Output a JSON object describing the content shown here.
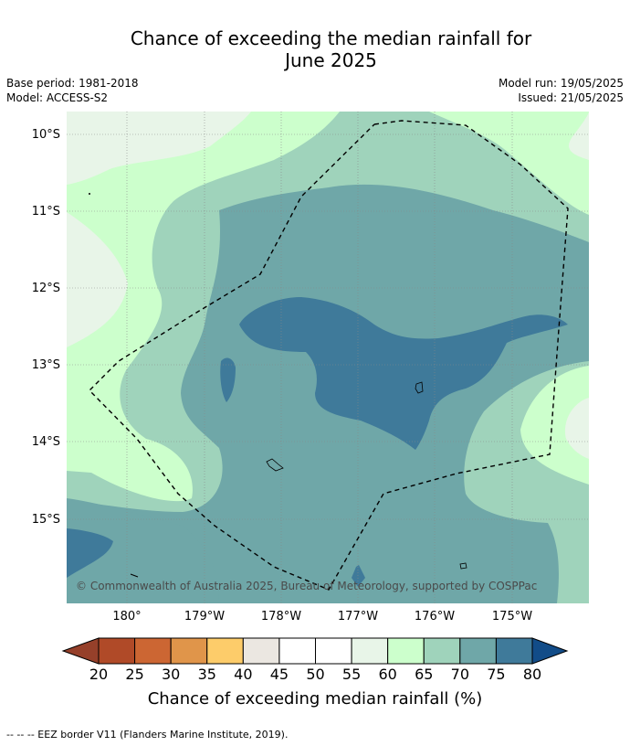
{
  "title_line1": "Chance of exceeding the median rainfall for",
  "title_line2": "June 2025",
  "meta": {
    "base_period": "Base period: 1981-2018",
    "model": "Model: ACCESS-S2",
    "model_run": "Model run: 19/05/2025",
    "issued": "Issued: 21/05/2025"
  },
  "axes": {
    "lat_labels": [
      "10°S",
      "11°S",
      "12°S",
      "13°S",
      "14°S",
      "15°S"
    ],
    "lon_labels": [
      "180°",
      "179°W",
      "178°W",
      "177°W",
      "176°W",
      "175°W"
    ]
  },
  "copyright": "© Commonwealth of Australia 2025, Bureau of Meteorology, supported by COSPPac",
  "colorbar": {
    "ticks": [
      "20",
      "25",
      "30",
      "35",
      "40",
      "45",
      "50",
      "55",
      "60",
      "65",
      "70",
      "75",
      "80"
    ],
    "colors": [
      "#b04a28",
      "#cc6633",
      "#e0954a",
      "#fdcc6a",
      "#ebe7e1",
      "#ffffff",
      "#ffffff",
      "#e8f5e8",
      "#ccffcc",
      "#9fd3bb",
      "#6fa7a8",
      "#3f7a9a"
    ],
    "low_extend_color": "#96402a",
    "high_extend_color": "#124c88",
    "label": "Chance of exceeding median rainfall (%)"
  },
  "footnote": "--  --  -- EEZ border V11 (Flanders Marine Institute, 2019)."
}
